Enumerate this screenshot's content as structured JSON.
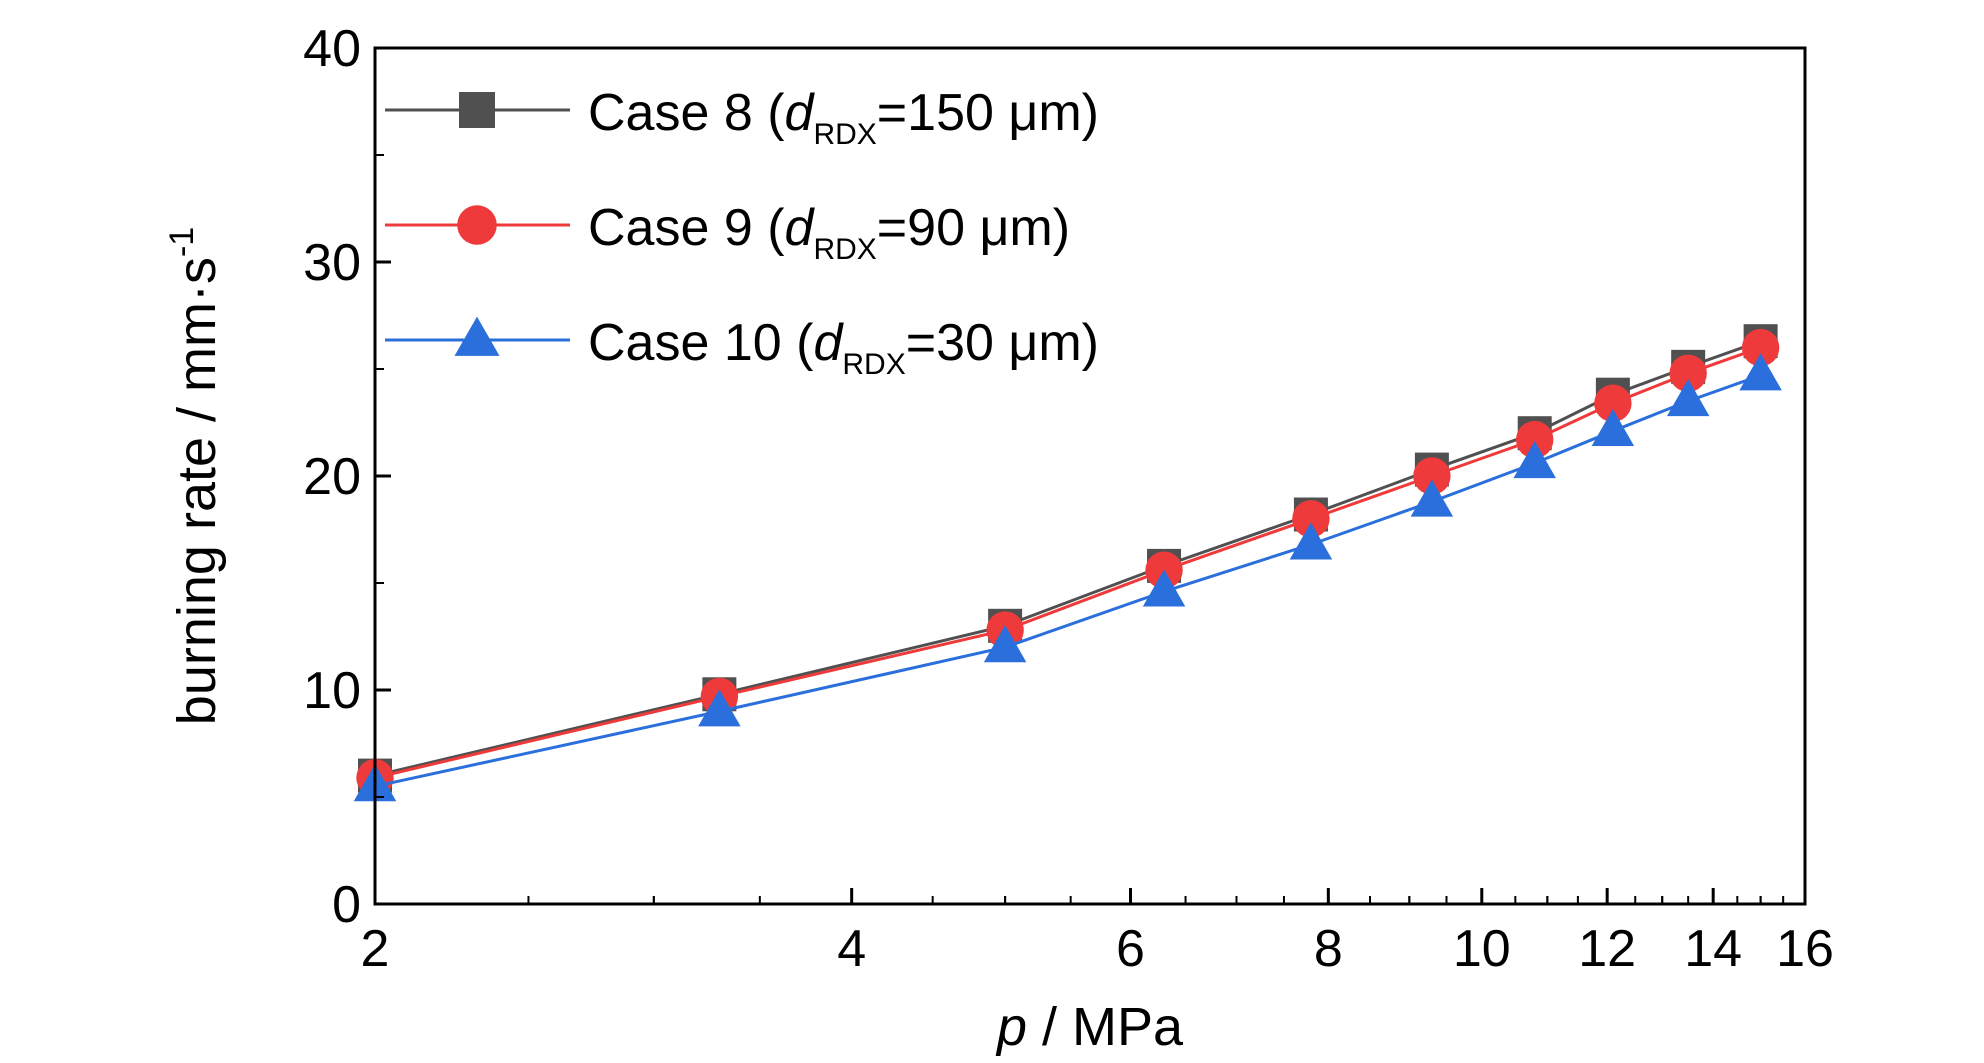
{
  "chart_data": {
    "type": "line",
    "xlabel": {
      "var": "p",
      "unit": " / MPa"
    },
    "ylabel": {
      "main": "burning rate / mm·s",
      "sup": "-1"
    },
    "x_scale": "log",
    "xlim": [
      2,
      16
    ],
    "ylim": [
      0,
      40
    ],
    "x_ticks": [
      2,
      4,
      6,
      8,
      10,
      12,
      14,
      16
    ],
    "y_ticks": [
      0,
      10,
      20,
      30,
      40
    ],
    "grid": false,
    "legend_position": "top-left",
    "series": [
      {
        "name": "Case 8 (dRDX=150 μm)",
        "legend": {
          "prefix": "Case 8 (",
          "var": "d",
          "sub": "RDX",
          "suffix": "=150 μm)"
        },
        "color": "#505050",
        "marker": "square",
        "x": [
          2,
          3.3,
          5,
          6.3,
          7.8,
          9.3,
          10.8,
          12.1,
          13.5,
          15
        ],
        "y": [
          6.0,
          9.8,
          13.0,
          15.8,
          18.2,
          20.3,
          22.0,
          23.8,
          25.1,
          26.3
        ]
      },
      {
        "name": "Case 9 (dRDX=90 μm)",
        "legend": {
          "prefix": "Case 9 (",
          "var": "d",
          "sub": "RDX",
          "suffix": "=90 μm)"
        },
        "color": "#ee3a3a",
        "marker": "circle",
        "x": [
          2,
          3.3,
          5,
          6.3,
          7.8,
          9.3,
          10.8,
          12.1,
          13.5,
          15
        ],
        "y": [
          5.9,
          9.7,
          12.8,
          15.6,
          18.0,
          20.0,
          21.7,
          23.4,
          24.8,
          26.0
        ]
      },
      {
        "name": "Case 10 (dRDX=30 μm)",
        "legend": {
          "prefix": "Case 10 (",
          "var": "d",
          "sub": "RDX",
          "suffix": "=30 μm)"
        },
        "color": "#2a6fdb",
        "marker": "triangle",
        "x": [
          2,
          3.3,
          5,
          6.3,
          7.8,
          9.3,
          10.8,
          12.1,
          13.5,
          15
        ],
        "y": [
          5.5,
          9.0,
          12.0,
          14.6,
          16.8,
          18.8,
          20.6,
          22.1,
          23.5,
          24.7
        ]
      }
    ]
  }
}
